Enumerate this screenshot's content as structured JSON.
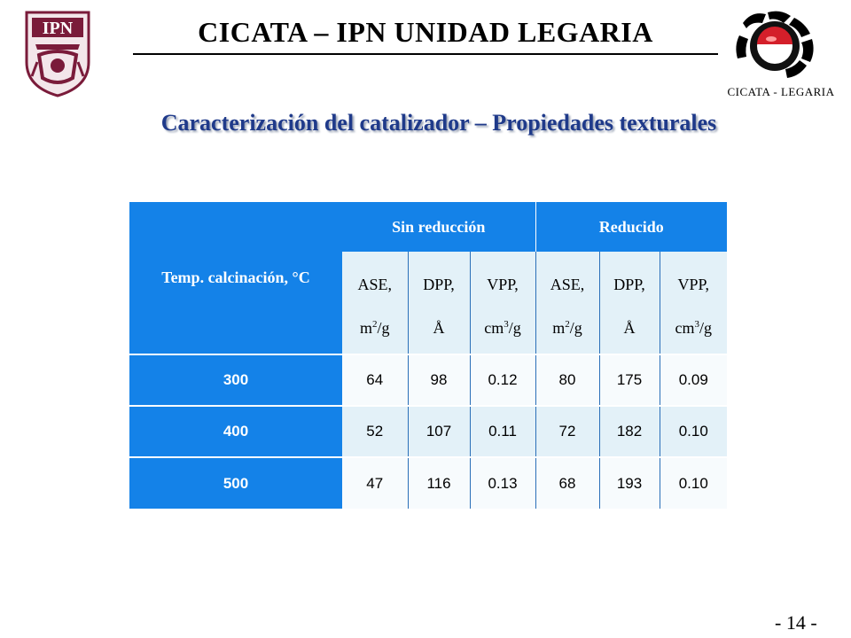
{
  "header": {
    "title": "CICATA – IPN UNIDAD LEGARIA",
    "right_logo_caption": "CICATA - LEGARIA",
    "left_logo_text": "IPN"
  },
  "subtitle": "Caracterización del catalizador – Propiedades texturales",
  "table": {
    "corner_header": "Temp. calcinación, °C",
    "groups": [
      "Sin reducción",
      "Reducido"
    ],
    "sub_headers": [
      {
        "name": "ASE,",
        "unit": "m",
        "sup": "2",
        "tail": "/g"
      },
      {
        "name": "DPP,",
        "unit": "Å",
        "sup": "",
        "tail": ""
      },
      {
        "name": "VPP,",
        "unit": "cm",
        "sup": "3",
        "tail": "/g"
      },
      {
        "name": "ASE,",
        "unit": "m",
        "sup": "2",
        "tail": "/g"
      },
      {
        "name": "DPP,",
        "unit": "Å",
        "sup": "",
        "tail": ""
      },
      {
        "name": "VPP,",
        "unit": "cm",
        "sup": "3",
        "tail": "/g"
      }
    ],
    "rows": [
      {
        "temp": "300",
        "values": [
          "64",
          "98",
          "0.12",
          "80",
          "175",
          "0.09"
        ]
      },
      {
        "temp": "400",
        "values": [
          "52",
          "107",
          "0.11",
          "72",
          "182",
          "0.10"
        ]
      },
      {
        "temp": "500",
        "values": [
          "47",
          "116",
          "0.13",
          "68",
          "193",
          "0.10"
        ]
      }
    ]
  },
  "page_number": "- 14 -",
  "colors": {
    "table_blue": "#1482e8",
    "subtitle_blue": "#1f3a8a",
    "ipn_maroon": "#7a1b3a"
  }
}
